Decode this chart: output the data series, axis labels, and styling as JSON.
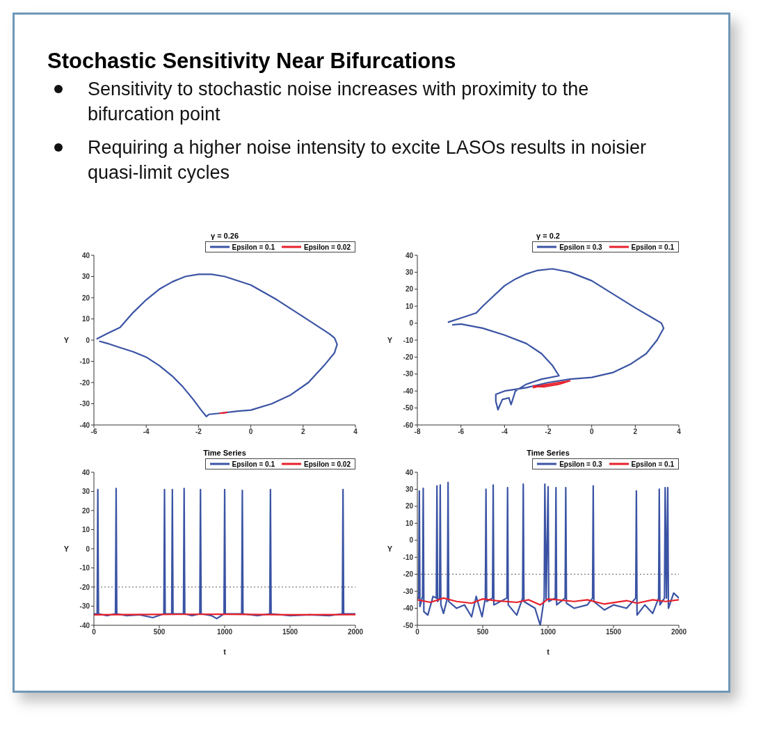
{
  "chart_data": [
    {
      "type": "other",
      "title": "Stochastic Sensitivity Near Bifurcations",
      "annotations": [
        "Sensitivity to stochastic noise increases with proximity to the bifurcation point",
        "Requiring a higher noise intensity to excite LASOs results in noisier quasi-limit cycles"
      ]
    },
    {
      "type": "line",
      "title": "γ = 0.26",
      "ylabel": "Y",
      "xlim": [
        -6,
        4
      ],
      "xticks": [
        -6,
        -4,
        -2,
        0,
        2,
        4
      ],
      "ylim": [
        -40,
        40
      ],
      "yticks": [
        -40,
        -30,
        -20,
        -10,
        0,
        10,
        20,
        30,
        40
      ],
      "legend": "top right",
      "grid": false,
      "series": [
        {
          "name": "Epsilon = 0.1",
          "color": "#3a53a4",
          "x": [
            -5.9,
            -5.5,
            -5,
            -4.5,
            -4,
            -3.5,
            -3,
            -2.5,
            -2,
            -1.5,
            -1,
            0,
            1,
            2,
            2.5,
            3,
            3.2,
            3.3,
            3.2,
            2.8,
            2.2,
            1.5,
            0.8,
            0,
            -0.5,
            -1.2,
            -1.6,
            -1.7,
            -1.9,
            -2.2,
            -2.6,
            -3,
            -3.5,
            -4,
            -4.5,
            -5,
            -5.5,
            -5.8
          ],
          "values": [
            0.5,
            3,
            6,
            13,
            19,
            24,
            27.5,
            30,
            31,
            31,
            30,
            26,
            19,
            11,
            7,
            3,
            1,
            -2,
            -6,
            -12,
            -20,
            -26,
            -30,
            -33,
            -33.5,
            -34.5,
            -35,
            -36,
            -33,
            -28,
            -22,
            -17,
            -12,
            -8,
            -5.5,
            -3.5,
            -1.5,
            -0.5
          ]
        },
        {
          "name": "Epsilon = 0.02",
          "color": "#e8202a",
          "x": [
            -1.2,
            -1,
            -0.9
          ],
          "values": [
            -34.5,
            -34.2,
            -34
          ]
        }
      ]
    },
    {
      "type": "line",
      "title": "γ = 0.2",
      "ylabel": "Y",
      "xlim": [
        -8,
        4
      ],
      "xticks": [
        -8,
        -6,
        -4,
        -2,
        0,
        2,
        4
      ],
      "ylim": [
        -60,
        40
      ],
      "yticks": [
        -60,
        -50,
        -40,
        -30,
        -20,
        -10,
        0,
        10,
        20,
        30,
        40
      ],
      "legend": "top right",
      "grid": false,
      "series": [
        {
          "name": "Epsilon = 0.3",
          "color": "#3a53a4",
          "x": [
            -6.6,
            -6,
            -5.3,
            -5,
            -4.5,
            -4,
            -3.5,
            -3,
            -2.5,
            -1.8,
            -1,
            0,
            1,
            2,
            2.8,
            3.2,
            3.3,
            3,
            2.5,
            1.8,
            1,
            0,
            -1,
            -2,
            -3,
            -4,
            -4.4,
            -4.4,
            -4.3,
            -4.1,
            -3.8,
            -3.7,
            -3.5,
            -3,
            -2.3,
            -1.5,
            -1.8,
            -2.3,
            -3,
            -4,
            -5,
            -6,
            -6.4
          ],
          "values": [
            0.5,
            3,
            6,
            10,
            16,
            22,
            26,
            29,
            31,
            32,
            30,
            25,
            17,
            9,
            3,
            0,
            -3,
            -10,
            -18,
            -24,
            -29,
            -32,
            -33,
            -35,
            -38,
            -40,
            -42,
            -46,
            -51,
            -45,
            -44,
            -48,
            -40,
            -36,
            -33,
            -31,
            -25,
            -18,
            -12,
            -7,
            -3,
            -0.5,
            -1
          ]
        },
        {
          "name": "Epsilon = 0.1",
          "color": "#e8202a",
          "x": [
            -2.7,
            -2.2,
            -1.5,
            -1,
            -1.5,
            -2.2,
            -2.7
          ],
          "values": [
            -38,
            -36.5,
            -35,
            -34,
            -36,
            -37.5,
            -37
          ]
        }
      ]
    },
    {
      "type": "line",
      "title": "Time Series",
      "xlabel": "t",
      "ylabel": "Y",
      "xlim": [
        0,
        2000
      ],
      "xticks": [
        0,
        500,
        1000,
        1500,
        2000
      ],
      "ylim": [
        -40,
        40
      ],
      "yticks": [
        -40,
        -30,
        -20,
        -10,
        0,
        10,
        20,
        30,
        40
      ],
      "legend": "top right",
      "grid": false,
      "ref_lines": [
        {
          "axis": "y",
          "value": -20,
          "line_style": "dotted"
        }
      ],
      "series": [
        {
          "name": "Epsilon = 0.1",
          "color": "#3a53a4",
          "x": [
            0,
            25,
            30,
            35,
            100,
            165,
            170,
            175,
            250,
            350,
            450,
            535,
            540,
            545,
            595,
            600,
            605,
            685,
            690,
            695,
            750,
            810,
            815,
            820,
            900,
            940,
            995,
            1000,
            1005,
            1130,
            1135,
            1140,
            1250,
            1345,
            1350,
            1355,
            1500,
            1650,
            1800,
            1900,
            1905,
            1910,
            2000
          ],
          "values": [
            -34,
            -34,
            31,
            -34,
            -35,
            -34,
            31.5,
            -34,
            -35,
            -34.5,
            -36,
            -34,
            31,
            -34,
            -34,
            31,
            -34,
            -34,
            31.5,
            -34,
            -35,
            -34,
            31,
            -34,
            -35,
            -36.5,
            -34,
            31,
            -34,
            -34,
            30.5,
            -34,
            -35,
            -34,
            31,
            -34,
            -35,
            -34.5,
            -35,
            -34,
            31,
            -34,
            -34
          ]
        },
        {
          "name": "Epsilon = 0.02",
          "color": "#e8202a",
          "x": [
            0,
            500,
            1000,
            1500,
            2000
          ],
          "values": [
            -34.5,
            -34.3,
            -34.2,
            -34.5,
            -34.4
          ]
        }
      ]
    },
    {
      "type": "line",
      "title": "Time Series",
      "xlabel": "t",
      "ylabel": "Y",
      "xlim": [
        0,
        2000
      ],
      "xticks": [
        0,
        500,
        1000,
        1500,
        2000
      ],
      "ylim": [
        -50,
        40
      ],
      "yticks": [
        -50,
        -40,
        -30,
        -20,
        -10,
        0,
        10,
        20,
        30,
        40
      ],
      "legend": "top right",
      "grid": false,
      "ref_lines": [
        {
          "axis": "y",
          "value": -20,
          "line_style": "dotted"
        }
      ],
      "series": [
        {
          "name": "Epsilon = 0.3",
          "color": "#3a53a4",
          "x": [
            0,
            10,
            15,
            20,
            40,
            45,
            50,
            80,
            120,
            145,
            150,
            155,
            170,
            175,
            180,
            200,
            230,
            235,
            240,
            300,
            360,
            415,
            450,
            495,
            520,
            525,
            530,
            575,
            580,
            585,
            685,
            690,
            695,
            760,
            805,
            810,
            815,
            900,
            940,
            970,
            975,
            985,
            1000,
            1005,
            1055,
            1060,
            1065,
            1130,
            1135,
            1140,
            1200,
            1300,
            1340,
            1345,
            1350,
            1430,
            1500,
            1600,
            1670,
            1675,
            1680,
            1740,
            1800,
            1845,
            1850,
            1855,
            1890,
            1895,
            1905,
            1915,
            1920,
            1960,
            2000
          ],
          "values": [
            -34,
            -34,
            29,
            -39,
            -33,
            30.5,
            -42,
            -44,
            -33,
            -34,
            32,
            -36,
            -34,
            32.5,
            -38,
            -43,
            -34,
            34,
            -36,
            -40,
            -38,
            -45,
            -33,
            -45,
            -34,
            30,
            -36,
            -34,
            32.5,
            -38,
            -34,
            31,
            -38,
            -44,
            -34,
            33,
            -36,
            -40,
            -50,
            -34,
            33,
            -35,
            31.5,
            -36,
            -34,
            31,
            -38,
            -34,
            31,
            -37,
            -40,
            -38,
            -34,
            32,
            -36,
            -41,
            -38,
            -40,
            -34,
            29,
            -44,
            -38,
            -43,
            -34,
            30,
            -38,
            -34,
            31,
            -34,
            31,
            -40,
            -31,
            -34
          ]
        },
        {
          "name": "Epsilon = 0.1",
          "color": "#e8202a",
          "x": [
            0,
            100,
            200,
            300,
            415,
            500,
            600,
            760,
            850,
            940,
            1000,
            1200,
            1300,
            1430,
            1600,
            1680,
            1800,
            1900,
            2000
          ],
          "values": [
            -35,
            -36.5,
            -34,
            -36,
            -37,
            -34.5,
            -35.5,
            -36.5,
            -35,
            -38,
            -34.5,
            -36,
            -35,
            -37.5,
            -35.5,
            -37,
            -35,
            -36,
            -35
          ]
        }
      ]
    }
  ]
}
